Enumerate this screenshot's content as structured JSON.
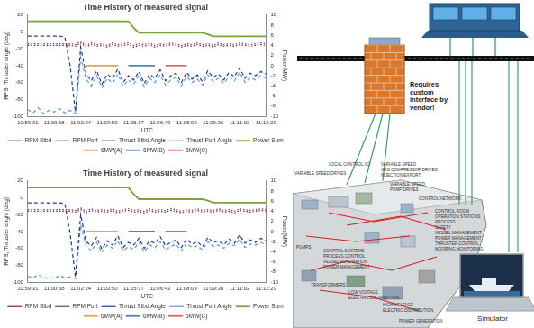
{
  "chart_data": [
    {
      "type": "line",
      "title": "Time History of measured signal",
      "x_label": "UTC",
      "y_label": "RPS, Thruster angle (deg)",
      "y2_label": "Power(MW)",
      "categories": [
        "10:59:31",
        null,
        null,
        null,
        null,
        "11:00:58",
        null,
        null,
        null,
        null,
        "11:02:24",
        null,
        null,
        null,
        null,
        "11:03:50",
        null,
        null,
        null,
        null,
        "11:05:17",
        null,
        null,
        null,
        null,
        "11:06:43",
        null,
        null,
        null,
        null,
        "11:08:09",
        null,
        null,
        null,
        null,
        "11:09:36",
        null,
        null,
        null,
        null,
        "11:11:02",
        null,
        null,
        null,
        null,
        "11:12:29"
      ],
      "ylim": [
        -100,
        20
      ],
      "yticks": [
        -100,
        -80,
        -60,
        -40,
        -20,
        0,
        20
      ],
      "y2lim": [
        -10,
        10
      ],
      "y2ticks": [
        -10,
        -8,
        -6,
        -4,
        -2,
        0,
        2,
        4,
        6,
        8,
        10
      ],
      "grid": false,
      "legend": "bottom",
      "series": [
        {
          "name": "RPM Stbd",
          "color": "#8b2323",
          "line_style": "dotted",
          "marker": "none",
          "values": [
            -16,
            -16,
            -16,
            -16,
            -16,
            -16,
            -16,
            -16,
            -16,
            -17,
            -13,
            -18,
            -15,
            -17,
            -16,
            -18,
            -15,
            -17,
            -16,
            -15,
            -18,
            -16,
            -17,
            -15,
            -18,
            -16,
            -17,
            -15,
            -16,
            -18,
            -16,
            -17,
            -15,
            -17,
            -16,
            -18,
            -15,
            -17,
            -16,
            -17,
            -15,
            -16,
            -17,
            -16,
            -15,
            -16
          ]
        },
        {
          "name": "RPM Port",
          "color": "#7a3b6e",
          "line_style": "dotted",
          "marker": "none",
          "values": [
            -14,
            -14,
            -14,
            -14,
            -14,
            -14,
            -14,
            -14,
            -14,
            -15,
            -11,
            -16,
            -13,
            -15,
            -14,
            -16,
            -13,
            -15,
            -14,
            -13,
            -16,
            -14,
            -15,
            -13,
            -16,
            -14,
            -15,
            -13,
            -14,
            -16,
            -14,
            -15,
            -13,
            -15,
            -14,
            -16,
            -13,
            -15,
            -14,
            -15,
            -13,
            -14,
            -15,
            -14,
            -13,
            -14
          ]
        },
        {
          "name": "Thrust Stbd Angle",
          "color": "#1f3a93",
          "line_style": "dashed",
          "marker": "none",
          "values": [
            -5,
            -5,
            -5,
            -5,
            -5,
            -5,
            -5,
            -6,
            -40,
            -95,
            -18,
            -50,
            -58,
            -46,
            -62,
            -50,
            -55,
            -44,
            -60,
            -52,
            -57,
            -47,
            -61,
            -50,
            -55,
            -45,
            -58,
            -52,
            -49,
            -60,
            -48,
            -56,
            -51,
            -59,
            -46,
            -54,
            -50,
            -57,
            -48,
            -53,
            -43,
            -55,
            -49,
            -52,
            -47,
            -50
          ]
        },
        {
          "name": "Thrust Port Angle",
          "color": "#5b9bd5",
          "line_style": "dashed",
          "marker": "none",
          "values": [
            -92,
            -96,
            -90,
            -97,
            -93,
            -95,
            -91,
            -96,
            -93,
            -97,
            -30,
            -56,
            -64,
            -52,
            -66,
            -55,
            -61,
            -50,
            -64,
            -57,
            -62,
            -52,
            -65,
            -55,
            -60,
            -51,
            -63,
            -57,
            -54,
            -64,
            -53,
            -60,
            -56,
            -63,
            -51,
            -59,
            -55,
            -61,
            -53,
            -58,
            -48,
            -60,
            -54,
            -57,
            -52,
            -55
          ]
        },
        {
          "name": "Power Sum",
          "color": "#77a33b",
          "line_style": "solid",
          "marker": "none",
          "axis": "y2",
          "values": [
            8.8,
            8.8,
            8.8,
            8.8,
            8.8,
            8.8,
            8.8,
            8.8,
            8.8,
            8.8,
            8.8,
            8.8,
            8.8,
            8.8,
            8.8,
            8.8,
            8.8,
            8.8,
            8.8,
            8.8,
            7.5,
            6.5,
            6.5,
            6.5,
            6.5,
            6.5,
            6.5,
            6.5,
            6.5,
            6.5,
            6.5,
            6.5,
            6.5,
            6.5,
            6.2,
            5.8,
            5.8,
            5.8,
            5.8,
            5.8,
            5.8,
            5.8,
            5.8,
            5.8,
            5.8,
            5.8
          ]
        },
        {
          "name": "6MW(A)",
          "color": "#f0a04b",
          "line_style": "solid",
          "marker": "none",
          "axis": "y2",
          "values": [
            null,
            null,
            null,
            null,
            null,
            null,
            null,
            null,
            null,
            null,
            null,
            0,
            0,
            0,
            0,
            0,
            0,
            0,
            null,
            null,
            null,
            null,
            null,
            null,
            null,
            null,
            null,
            null,
            null,
            null,
            null,
            null,
            null,
            null,
            null,
            null,
            null,
            null,
            null,
            null,
            null,
            null,
            null,
            null,
            null,
            null
          ]
        },
        {
          "name": "6MW(B)",
          "color": "#4f81bd",
          "line_style": "solid",
          "marker": "none",
          "axis": "y2",
          "values": [
            null,
            null,
            null,
            null,
            null,
            null,
            null,
            null,
            null,
            null,
            null,
            null,
            null,
            null,
            null,
            null,
            null,
            null,
            null,
            0,
            0,
            0,
            0,
            0,
            0,
            null,
            null,
            null,
            null,
            null,
            null,
            null,
            null,
            null,
            null,
            null,
            null,
            null,
            null,
            null,
            null,
            null,
            null,
            null,
            null,
            null
          ]
        },
        {
          "name": "5MW(C)",
          "color": "#e06666",
          "line_style": "solid",
          "marker": "none",
          "axis": "y2",
          "values": [
            null,
            null,
            null,
            null,
            null,
            null,
            null,
            null,
            null,
            null,
            null,
            null,
            null,
            null,
            null,
            null,
            null,
            null,
            null,
            null,
            null,
            null,
            null,
            null,
            null,
            null,
            0,
            0,
            0,
            0,
            0,
            null,
            null,
            null,
            null,
            null,
            null,
            null,
            null,
            null,
            null,
            null,
            null,
            null,
            null,
            null
          ]
        }
      ]
    },
    {
      "type": "line",
      "title": "Time History of measured signal",
      "x_label": "UTC",
      "y_label": "RPS, Thruster angle (deg)",
      "y2_label": "Power(MW)",
      "categories": [
        "10:59:31",
        null,
        null,
        null,
        null,
        "11:00:58",
        null,
        null,
        null,
        null,
        "11:02:24",
        null,
        null,
        null,
        null,
        "11:03:50",
        null,
        null,
        null,
        null,
        "11:05:17",
        null,
        null,
        null,
        null,
        "11:06:43",
        null,
        null,
        null,
        null,
        "11:08:09",
        null,
        null,
        null,
        null,
        "11:09:36",
        null,
        null,
        null,
        null,
        "11:11:02",
        null,
        null,
        null,
        null,
        "11:12:29"
      ],
      "ylim": [
        -100,
        20
      ],
      "yticks": [
        -100,
        -80,
        -60,
        -40,
        -20,
        0,
        20
      ],
      "y2lim": [
        -10,
        10
      ],
      "y2ticks": [
        -10,
        -8,
        -6,
        -4,
        -2,
        0,
        2,
        4,
        6,
        8,
        10
      ],
      "grid": false,
      "legend": "bottom",
      "series": [
        {
          "name": "RPM Stbd",
          "color": "#8b2323",
          "line_style": "dotted",
          "marker": "none",
          "values": [
            -16,
            -16,
            -16,
            -16,
            -16,
            -16,
            -16,
            -16,
            -16,
            -17,
            -14,
            -18,
            -15,
            -17,
            -16,
            -17,
            -15,
            -18,
            -16,
            -15,
            -17,
            -16,
            -18,
            -15,
            -17,
            -16,
            -17,
            -15,
            -16,
            -18,
            -16,
            -17,
            -15,
            -17,
            -16,
            -17,
            -15,
            -17,
            -16,
            -18,
            -15,
            -16,
            -17,
            -16,
            -15,
            -16
          ]
        },
        {
          "name": "RPM Port",
          "color": "#7a3b6e",
          "line_style": "dotted",
          "marker": "none",
          "values": [
            -14,
            -14,
            -14,
            -14,
            -14,
            -14,
            -14,
            -14,
            -14,
            -15,
            -12,
            -16,
            -13,
            -15,
            -14,
            -15,
            -13,
            -16,
            -14,
            -13,
            -15,
            -14,
            -16,
            -13,
            -15,
            -14,
            -15,
            -13,
            -14,
            -16,
            -14,
            -15,
            -13,
            -15,
            -14,
            -15,
            -13,
            -15,
            -14,
            -16,
            -13,
            -14,
            -15,
            -14,
            -13,
            -14
          ]
        },
        {
          "name": "Thrust Stbd Angle",
          "color": "#1f3a93",
          "line_style": "dashed",
          "marker": "none",
          "values": [
            -6,
            -6,
            -6,
            -6,
            -6,
            -6,
            -6,
            -7,
            -42,
            -94,
            -20,
            -52,
            -57,
            -47,
            -61,
            -51,
            -56,
            -45,
            -59,
            -53,
            -56,
            -48,
            -60,
            -51,
            -54,
            -46,
            -57,
            -53,
            -50,
            -59,
            -49,
            -55,
            -52,
            -58,
            -47,
            -53,
            -51,
            -56,
            -49,
            -54,
            -44,
            -54,
            -50,
            -53,
            -48,
            -51
          ]
        },
        {
          "name": "Thrust Port Angle",
          "color": "#5b9bd5",
          "line_style": "dashed",
          "marker": "none",
          "values": [
            -93,
            -95,
            -91,
            -96,
            -94,
            -96,
            -92,
            -95,
            -94,
            -96,
            -32,
            -57,
            -63,
            -53,
            -65,
            -56,
            -60,
            -51,
            -63,
            -58,
            -61,
            -53,
            -64,
            -56,
            -59,
            -52,
            -62,
            -58,
            -55,
            -63,
            -54,
            -59,
            -57,
            -62,
            -52,
            -58,
            -56,
            -60,
            -54,
            -57,
            -49,
            -59,
            -55,
            -56,
            -53,
            -56
          ]
        },
        {
          "name": "Power Sum",
          "color": "#77a33b",
          "line_style": "solid",
          "marker": "none",
          "axis": "y2",
          "values": [
            8.7,
            8.7,
            8.7,
            8.7,
            8.7,
            8.7,
            8.7,
            8.7,
            8.7,
            8.7,
            8.7,
            8.7,
            8.7,
            8.7,
            8.7,
            8.7,
            8.7,
            8.7,
            8.7,
            8.7,
            7.4,
            6.4,
            6.4,
            6.4,
            6.4,
            6.4,
            6.4,
            6.4,
            6.4,
            6.4,
            6.4,
            6.4,
            6.4,
            6.4,
            6.1,
            5.7,
            5.7,
            5.7,
            5.7,
            5.7,
            5.7,
            5.7,
            5.7,
            5.7,
            5.7,
            5.7
          ]
        },
        {
          "name": "6MW(A)",
          "color": "#f0a04b",
          "line_style": "solid",
          "marker": "none",
          "axis": "y2",
          "values": [
            null,
            null,
            null,
            null,
            null,
            null,
            null,
            null,
            null,
            null,
            null,
            0,
            0,
            0,
            0,
            0,
            0,
            0,
            null,
            null,
            null,
            null,
            null,
            null,
            null,
            null,
            null,
            null,
            null,
            null,
            null,
            null,
            null,
            null,
            null,
            null,
            null,
            null,
            null,
            null,
            null,
            null,
            null,
            null,
            null,
            null
          ]
        },
        {
          "name": "6MW(B)",
          "color": "#4f81bd",
          "line_style": "solid",
          "marker": "none",
          "axis": "y2",
          "values": [
            null,
            null,
            null,
            null,
            null,
            null,
            null,
            null,
            null,
            null,
            null,
            null,
            null,
            null,
            null,
            null,
            null,
            null,
            null,
            0,
            0,
            0,
            0,
            0,
            0,
            null,
            null,
            null,
            null,
            null,
            null,
            null,
            null,
            null,
            null,
            null,
            null,
            null,
            null,
            null,
            null,
            null,
            null,
            null,
            null,
            null
          ]
        },
        {
          "name": "5MW(C)",
          "color": "#e06666",
          "line_style": "solid",
          "marker": "none",
          "axis": "y2",
          "values": [
            null,
            null,
            null,
            null,
            null,
            null,
            null,
            null,
            null,
            null,
            null,
            null,
            null,
            null,
            null,
            null,
            null,
            null,
            null,
            null,
            null,
            null,
            null,
            null,
            null,
            null,
            0,
            0,
            0,
            0,
            0,
            null,
            null,
            null,
            null,
            null,
            null,
            null,
            null,
            null,
            null,
            null,
            null,
            null,
            null,
            null
          ]
        }
      ]
    }
  ],
  "diagram": {
    "note_lines": [
      "Requires",
      "custom",
      "interface by",
      "vendor!"
    ],
    "simulator_label": "Simulator",
    "ship_labels": [
      "LOCAL CONTROL I/O",
      "VARIABLE SPEED DRIVES",
      "VARIABLE SPEED",
      "GAS COMPRESSOR DRIVES",
      "INJECTION/EXPORT",
      "VARIABLE SPEED",
      "PUMP DRIVES",
      "CONTROL NETWORK",
      "CONTROL ROOM",
      "OPERATION STATIONS",
      "PROCESS",
      "SAFETY",
      "VESSEL MANAGEMENT",
      "POWER MANAGEMENT",
      "THRUSTER CONTROL",
      "MOORING MONITORING",
      "PUMPS",
      "CONTROL SYSTEMS",
      "PROCESS CONTROL",
      "VESSEL AUTOMATION",
      "POWER MANAGEMENT",
      "TRANSFORMERS",
      "LOW VOLTAGE",
      "ELECTRIC DISTRIBUTION",
      "HIGH VOLTAGE",
      "ELECTRIC DISTRIBUTION",
      "POWER GENERATION"
    ]
  }
}
